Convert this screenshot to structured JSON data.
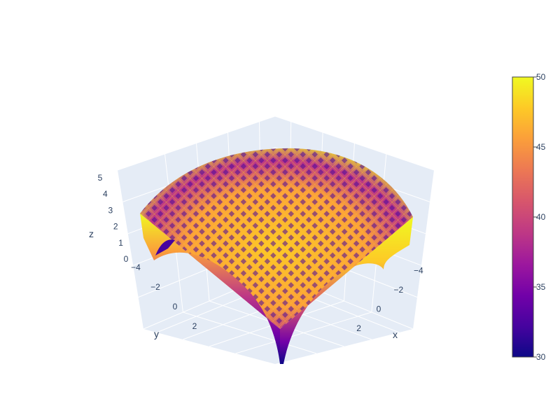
{
  "chart_data": {
    "type": "surface-3d",
    "title": "",
    "x": {
      "label": "x",
      "range": [
        -5,
        5
      ],
      "ticks": [
        -4,
        -2,
        0,
        2
      ]
    },
    "y": {
      "label": "y",
      "range": [
        -5,
        5
      ],
      "ticks": [
        -4,
        -2,
        0,
        2
      ]
    },
    "z": {
      "label": "z",
      "range": [
        0,
        5
      ],
      "ticks": [
        0,
        1,
        2,
        3,
        4,
        5
      ]
    },
    "colorbar": {
      "min": 30,
      "max": 50,
      "ticks": [
        30,
        35,
        40,
        45,
        50
      ],
      "colorscale": "plasma"
    },
    "grid": true,
    "background": "#e5ecf6"
  },
  "colors": {
    "plasma": [
      "#0d0887",
      "#46039f",
      "#7201a8",
      "#9c179e",
      "#bd3786",
      "#d8576b",
      "#ed7953",
      "#fb9f3a",
      "#fdca26",
      "#f0f921"
    ],
    "axis_text": "#2a3f5f",
    "grid_line": "#ffffff",
    "pane": "#e5ecf6"
  }
}
